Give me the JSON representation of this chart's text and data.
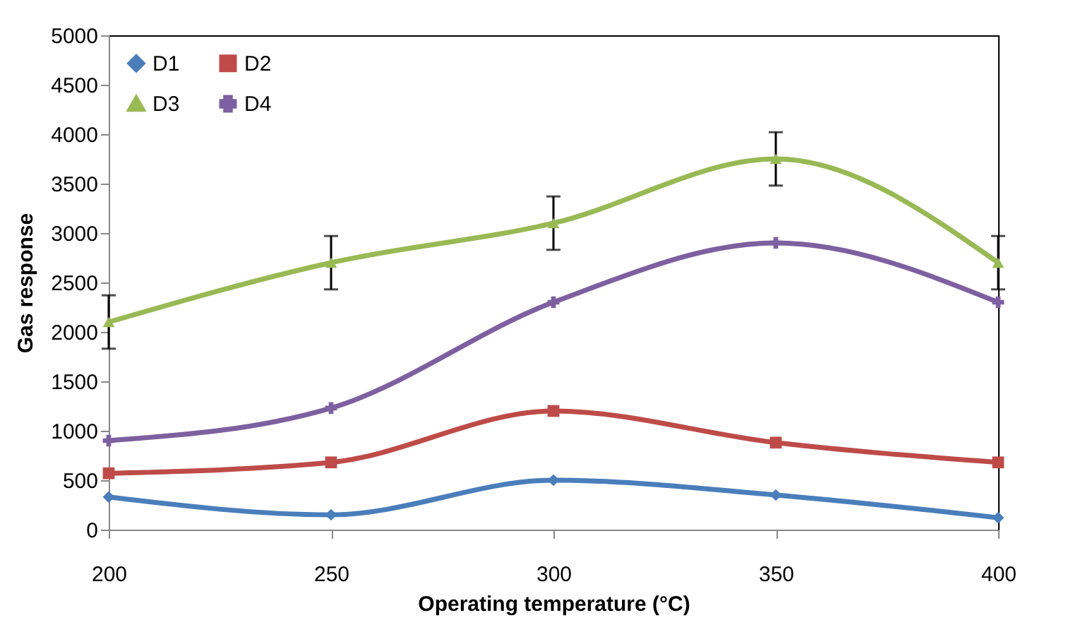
{
  "chart_data": {
    "type": "line",
    "xlabel": "Operating temperature (°C)",
    "ylabel": "Gas response",
    "x": [
      200,
      250,
      300,
      350,
      400
    ],
    "series": [
      {
        "name": "D1",
        "color": "#4a7ebb",
        "marker": "diamond",
        "values": [
          330,
          150,
          500,
          350,
          120
        ]
      },
      {
        "name": "D2",
        "color": "#be4b48",
        "marker": "square",
        "values": [
          570,
          680,
          1200,
          880,
          680
        ]
      },
      {
        "name": "D3",
        "color": "#98b954",
        "marker": "triangle",
        "values": [
          2100,
          2700,
          3100,
          3750,
          2700
        ],
        "errors": [
          270,
          270,
          270,
          270,
          270
        ]
      },
      {
        "name": "D4",
        "color": "#7d60a0",
        "marker": "cross",
        "values": [
          900,
          1230,
          2300,
          2900,
          2300
        ]
      }
    ],
    "xlim": [
      200,
      400
    ],
    "xticks": [
      200,
      250,
      300,
      350,
      400
    ],
    "ylim": [
      0,
      5000
    ],
    "yticks": [
      0,
      500,
      1000,
      1500,
      2000,
      2500,
      3000,
      3500,
      4000,
      4500,
      5000
    ],
    "grid": false,
    "legend": "top left"
  }
}
